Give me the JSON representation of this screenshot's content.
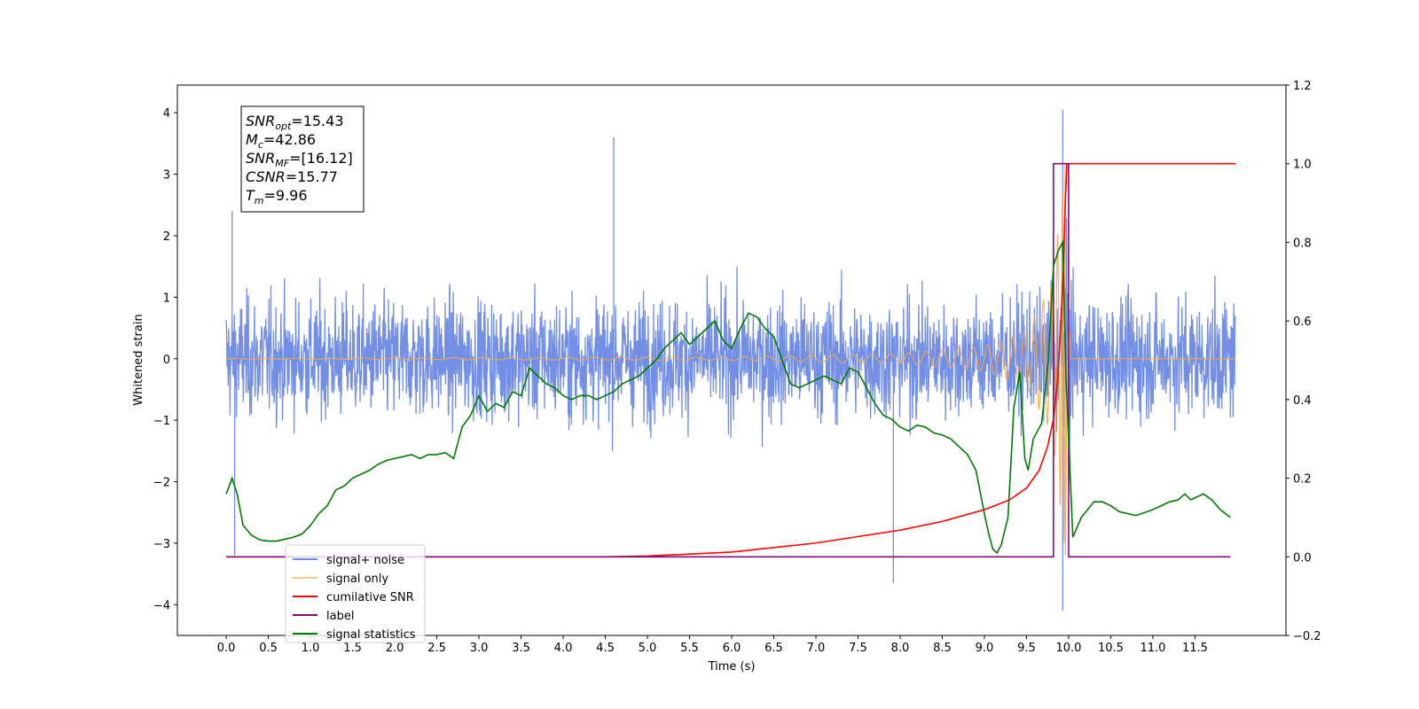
{
  "chart_data": {
    "type": "line",
    "title": "",
    "xlabel": "Time (s)",
    "ylabel": "Whitened strain",
    "y2label": "",
    "xlim": [
      -0.58,
      12.58
    ],
    "ylim": [
      -4.5,
      4.45
    ],
    "y2lim": [
      -0.2,
      1.2
    ],
    "x_ticks": [
      0.0,
      0.5,
      1.0,
      1.5,
      2.0,
      2.5,
      3.0,
      3.5,
      4.0,
      4.5,
      5.0,
      5.5,
      6.0,
      6.5,
      7.0,
      7.5,
      8.0,
      8.5,
      9.0,
      9.5,
      10.0,
      10.5,
      11.0,
      11.5
    ],
    "x_tick_labels": [
      "0.0",
      "0.5",
      "1.0",
      "1.5",
      "2.0",
      "2.5",
      "3.0",
      "3.5",
      "4.0",
      "4.5",
      "5.0",
      "5.5",
      "6.0",
      "6.5",
      "7.0",
      "7.5",
      "8.0",
      "8.5",
      "9.0",
      "9.5",
      "10.0",
      "10.5",
      "11.0",
      "11.5"
    ],
    "y_ticks": [
      -4,
      -3,
      -2,
      -1,
      0,
      1,
      2,
      3,
      4
    ],
    "y_tick_labels": [
      "−4",
      "−3",
      "−2",
      "−1",
      "0",
      "1",
      "2",
      "3",
      "4"
    ],
    "y2_ticks": [
      -0.2,
      0.0,
      0.2,
      0.4,
      0.6,
      0.8,
      1.0,
      1.2
    ],
    "y2_tick_labels": [
      "−0.2",
      "0.0",
      "0.2",
      "0.4",
      "0.6",
      "0.8",
      "1.0",
      "1.2"
    ],
    "grid": false,
    "legend_position": "lower-left",
    "stats_box": [
      {
        "sym": "SNR",
        "sub": "opt",
        "val": "=15.43"
      },
      {
        "sym": "M",
        "sub": "c",
        "val": "=42.86"
      },
      {
        "sym": "SNR",
        "sub": "MF",
        "val": "=[16.12]"
      },
      {
        "sym": "CSNR",
        "sub": "",
        "val": "=15.77"
      },
      {
        "sym": "T",
        "sub": "m",
        "val": "=9.96"
      }
    ],
    "series": [
      {
        "name": "signal+ noise",
        "axis": "left",
        "color": "#6a88e4",
        "kind": "noisy-band",
        "x_range": [
          0.0,
          11.98
        ],
        "typical_amplitude": 1.6,
        "peaks": [
          [
            0.07,
            2.4
          ],
          [
            4.6,
            3.6
          ],
          [
            9.93,
            4.05
          ],
          [
            9.93,
            -4.1
          ],
          [
            7.92,
            -3.65
          ],
          [
            0.1,
            -3.2
          ]
        ]
      },
      {
        "name": "signal only",
        "axis": "left",
        "color": "#f5a94e",
        "kind": "chirp",
        "x_range": [
          0.0,
          11.98
        ],
        "merger_time": 9.96,
        "amplitude_points": [
          [
            0.0,
            0.005
          ],
          [
            6.0,
            0.03
          ],
          [
            8.0,
            0.08
          ],
          [
            9.0,
            0.2
          ],
          [
            9.5,
            0.45
          ],
          [
            9.8,
            1.2
          ],
          [
            9.9,
            2.4
          ],
          [
            9.96,
            3.2
          ]
        ],
        "ringdown_min": -3.4
      },
      {
        "name": "cumilative SNR",
        "axis": "right",
        "color": "#ff0000",
        "points": [
          [
            0.0,
            0.0
          ],
          [
            4.5,
            0.0
          ],
          [
            5.0,
            0.002
          ],
          [
            6.0,
            0.012
          ],
          [
            7.0,
            0.035
          ],
          [
            8.0,
            0.068
          ],
          [
            8.5,
            0.09
          ],
          [
            9.0,
            0.12
          ],
          [
            9.3,
            0.145
          ],
          [
            9.5,
            0.175
          ],
          [
            9.65,
            0.22
          ],
          [
            9.75,
            0.28
          ],
          [
            9.82,
            0.35
          ],
          [
            9.87,
            0.45
          ],
          [
            9.91,
            0.6
          ],
          [
            9.94,
            0.75
          ],
          [
            9.96,
            0.9
          ],
          [
            9.98,
            1.0
          ],
          [
            11.98,
            1.0
          ]
        ]
      },
      {
        "name": "label",
        "axis": "right",
        "color": "#7b0e7b",
        "points": [
          [
            0.0,
            0.0
          ],
          [
            9.82,
            0.0
          ],
          [
            9.82,
            1.0
          ],
          [
            10.0,
            1.0
          ],
          [
            10.0,
            0.0
          ],
          [
            11.92,
            0.0
          ]
        ]
      },
      {
        "name": "signal statistics",
        "axis": "right",
        "color": "#007a00",
        "points": [
          [
            0.0,
            0.16
          ],
          [
            0.07,
            0.2
          ],
          [
            0.13,
            0.16
          ],
          [
            0.2,
            0.08
          ],
          [
            0.3,
            0.055
          ],
          [
            0.4,
            0.043
          ],
          [
            0.5,
            0.04
          ],
          [
            0.6,
            0.04
          ],
          [
            0.7,
            0.045
          ],
          [
            0.8,
            0.05
          ],
          [
            0.9,
            0.058
          ],
          [
            1.0,
            0.08
          ],
          [
            1.1,
            0.11
          ],
          [
            1.2,
            0.13
          ],
          [
            1.3,
            0.17
          ],
          [
            1.4,
            0.18
          ],
          [
            1.5,
            0.2
          ],
          [
            1.6,
            0.21
          ],
          [
            1.7,
            0.22
          ],
          [
            1.8,
            0.235
          ],
          [
            1.9,
            0.245
          ],
          [
            2.0,
            0.25
          ],
          [
            2.1,
            0.255
          ],
          [
            2.2,
            0.26
          ],
          [
            2.3,
            0.25
          ],
          [
            2.4,
            0.26
          ],
          [
            2.5,
            0.26
          ],
          [
            2.6,
            0.265
          ],
          [
            2.7,
            0.25
          ],
          [
            2.8,
            0.33
          ],
          [
            2.9,
            0.36
          ],
          [
            3.0,
            0.41
          ],
          [
            3.1,
            0.37
          ],
          [
            3.2,
            0.39
          ],
          [
            3.3,
            0.38
          ],
          [
            3.4,
            0.42
          ],
          [
            3.5,
            0.41
          ],
          [
            3.6,
            0.48
          ],
          [
            3.7,
            0.46
          ],
          [
            3.8,
            0.44
          ],
          [
            3.9,
            0.43
          ],
          [
            4.0,
            0.41
          ],
          [
            4.1,
            0.4
          ],
          [
            4.2,
            0.41
          ],
          [
            4.3,
            0.41
          ],
          [
            4.4,
            0.4
          ],
          [
            4.5,
            0.41
          ],
          [
            4.6,
            0.42
          ],
          [
            4.7,
            0.44
          ],
          [
            4.8,
            0.45
          ],
          [
            4.9,
            0.46
          ],
          [
            5.0,
            0.48
          ],
          [
            5.1,
            0.5
          ],
          [
            5.2,
            0.53
          ],
          [
            5.3,
            0.55
          ],
          [
            5.4,
            0.57
          ],
          [
            5.5,
            0.54
          ],
          [
            5.6,
            0.56
          ],
          [
            5.7,
            0.58
          ],
          [
            5.8,
            0.6
          ],
          [
            5.9,
            0.55
          ],
          [
            6.0,
            0.53
          ],
          [
            6.1,
            0.58
          ],
          [
            6.2,
            0.62
          ],
          [
            6.3,
            0.61
          ],
          [
            6.4,
            0.58
          ],
          [
            6.5,
            0.56
          ],
          [
            6.6,
            0.5
          ],
          [
            6.7,
            0.44
          ],
          [
            6.8,
            0.43
          ],
          [
            6.9,
            0.44
          ],
          [
            7.0,
            0.45
          ],
          [
            7.1,
            0.46
          ],
          [
            7.2,
            0.45
          ],
          [
            7.3,
            0.44
          ],
          [
            7.4,
            0.48
          ],
          [
            7.5,
            0.47
          ],
          [
            7.6,
            0.43
          ],
          [
            7.7,
            0.39
          ],
          [
            7.8,
            0.36
          ],
          [
            7.9,
            0.35
          ],
          [
            8.0,
            0.33
          ],
          [
            8.1,
            0.32
          ],
          [
            8.2,
            0.335
          ],
          [
            8.3,
            0.33
          ],
          [
            8.4,
            0.315
          ],
          [
            8.5,
            0.31
          ],
          [
            8.6,
            0.3
          ],
          [
            8.7,
            0.28
          ],
          [
            8.8,
            0.26
          ],
          [
            8.9,
            0.22
          ],
          [
            9.0,
            0.11
          ],
          [
            9.05,
            0.06
          ],
          [
            9.1,
            0.02
          ],
          [
            9.15,
            0.01
          ],
          [
            9.2,
            0.03
          ],
          [
            9.28,
            0.1
          ],
          [
            9.35,
            0.38
          ],
          [
            9.42,
            0.47
          ],
          [
            9.48,
            0.25
          ],
          [
            9.52,
            0.22
          ],
          [
            9.58,
            0.3
          ],
          [
            9.68,
            0.34
          ],
          [
            9.76,
            0.5
          ],
          [
            9.82,
            0.74
          ],
          [
            9.88,
            0.78
          ],
          [
            9.93,
            0.8
          ],
          [
            9.97,
            0.45
          ],
          [
            10.05,
            0.05
          ],
          [
            10.15,
            0.1
          ],
          [
            10.3,
            0.14
          ],
          [
            10.4,
            0.14
          ],
          [
            10.5,
            0.13
          ],
          [
            10.6,
            0.115
          ],
          [
            10.8,
            0.105
          ],
          [
            11.0,
            0.12
          ],
          [
            11.1,
            0.13
          ],
          [
            11.2,
            0.14
          ],
          [
            11.3,
            0.145
          ],
          [
            11.38,
            0.16
          ],
          [
            11.45,
            0.145
          ],
          [
            11.5,
            0.15
          ],
          [
            11.6,
            0.16
          ],
          [
            11.7,
            0.145
          ],
          [
            11.8,
            0.12
          ],
          [
            11.92,
            0.1
          ]
        ]
      }
    ]
  }
}
